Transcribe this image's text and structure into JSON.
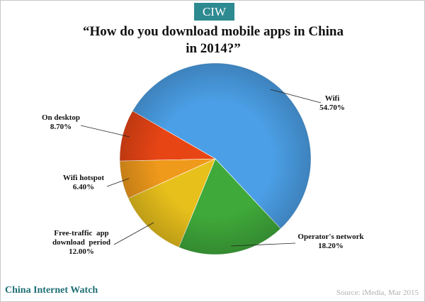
{
  "header": {
    "badge": "CIW"
  },
  "chart_data": {
    "type": "pie",
    "title_lines": [
      "“How do you download mobile apps in China",
      "in 2014?”"
    ],
    "slices": [
      {
        "label": "Wifi",
        "value": 54.7,
        "display": "54.70%",
        "color": "#4b9fe6"
      },
      {
        "label": "Operator's network",
        "value": 18.2,
        "display": "18.20%",
        "color": "#3fa93a"
      },
      {
        "label": "Free-traffic app download period",
        "label_lines": [
          "Free-traffic  app",
          "download  period"
        ],
        "value": 12.0,
        "display": "12.00%",
        "color": "#e8c01c"
      },
      {
        "label": "Wifi hotspot",
        "value": 6.4,
        "display": "6.40%",
        "color": "#f09a1c"
      },
      {
        "label": "On desktop",
        "value": 8.7,
        "display": "8.70%",
        "color": "#e84515"
      }
    ]
  },
  "footer": {
    "brand": "China Internet Watch",
    "source": "Source: iMedia,  Mar 2015"
  }
}
